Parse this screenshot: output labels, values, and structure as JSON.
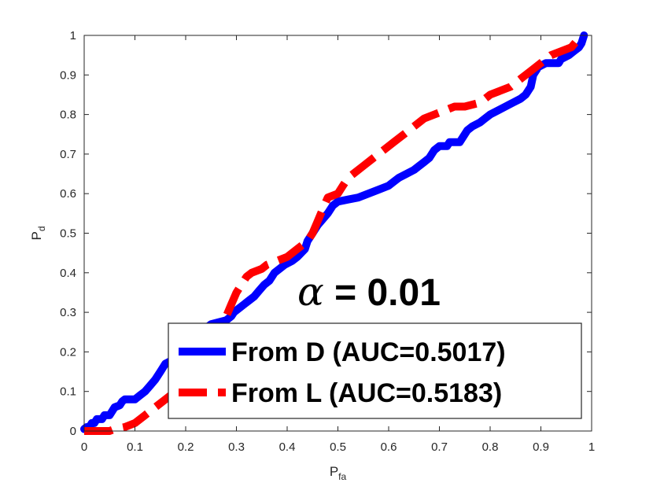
{
  "chart_data": {
    "type": "line",
    "title": "",
    "xlabel": "P",
    "xlabel_sub": "fa",
    "ylabel": "P",
    "ylabel_sub": "d",
    "xlim": [
      0,
      1
    ],
    "ylim": [
      0,
      1
    ],
    "xticks": [
      "0",
      "0.1",
      "0.2",
      "0.3",
      "0.4",
      "0.5",
      "0.6",
      "0.7",
      "0.8",
      "0.9",
      "1"
    ],
    "yticks": [
      "0",
      "0.1",
      "0.2",
      "0.3",
      "0.4",
      "0.5",
      "0.6",
      "0.7",
      "0.8",
      "0.9",
      "1"
    ],
    "grid": false,
    "legend_position": "bottom-right",
    "annotation": {
      "symbol": "α",
      "text": " = 0.01"
    },
    "series": [
      {
        "name": "From D (AUC=0.5017)",
        "color": "#0000ff",
        "style": "solid",
        "points": [
          [
            0,
            0.005
          ],
          [
            0.005,
            0.01
          ],
          [
            0.01,
            0.01
          ],
          [
            0.015,
            0.02
          ],
          [
            0.02,
            0.02
          ],
          [
            0.025,
            0.03
          ],
          [
            0.035,
            0.03
          ],
          [
            0.04,
            0.04
          ],
          [
            0.05,
            0.04
          ],
          [
            0.055,
            0.05
          ],
          [
            0.06,
            0.06
          ],
          [
            0.07,
            0.065
          ],
          [
            0.075,
            0.075
          ],
          [
            0.08,
            0.08
          ],
          [
            0.1,
            0.08
          ],
          [
            0.11,
            0.09
          ],
          [
            0.12,
            0.1
          ],
          [
            0.13,
            0.115
          ],
          [
            0.14,
            0.13
          ],
          [
            0.15,
            0.15
          ],
          [
            0.155,
            0.16
          ],
          [
            0.16,
            0.17
          ],
          [
            0.175,
            0.18
          ],
          [
            0.19,
            0.19
          ],
          [
            0.2,
            0.2
          ],
          [
            0.21,
            0.22
          ],
          [
            0.22,
            0.24
          ],
          [
            0.23,
            0.25
          ],
          [
            0.24,
            0.26
          ],
          [
            0.25,
            0.27
          ],
          [
            0.265,
            0.275
          ],
          [
            0.28,
            0.28
          ],
          [
            0.29,
            0.29
          ],
          [
            0.295,
            0.3
          ],
          [
            0.305,
            0.31
          ],
          [
            0.315,
            0.32
          ],
          [
            0.325,
            0.33
          ],
          [
            0.335,
            0.34
          ],
          [
            0.345,
            0.355
          ],
          [
            0.355,
            0.37
          ],
          [
            0.365,
            0.38
          ],
          [
            0.375,
            0.4
          ],
          [
            0.385,
            0.41
          ],
          [
            0.395,
            0.42
          ],
          [
            0.41,
            0.43
          ],
          [
            0.42,
            0.44
          ],
          [
            0.435,
            0.46
          ],
          [
            0.44,
            0.48
          ],
          [
            0.45,
            0.5
          ],
          [
            0.46,
            0.52
          ],
          [
            0.47,
            0.535
          ],
          [
            0.48,
            0.55
          ],
          [
            0.49,
            0.57
          ],
          [
            0.5,
            0.58
          ],
          [
            0.52,
            0.585
          ],
          [
            0.54,
            0.59
          ],
          [
            0.56,
            0.6
          ],
          [
            0.58,
            0.61
          ],
          [
            0.6,
            0.62
          ],
          [
            0.61,
            0.63
          ],
          [
            0.62,
            0.64
          ],
          [
            0.635,
            0.65
          ],
          [
            0.65,
            0.66
          ],
          [
            0.66,
            0.67
          ],
          [
            0.67,
            0.68
          ],
          [
            0.68,
            0.69
          ],
          [
            0.69,
            0.71
          ],
          [
            0.7,
            0.72
          ],
          [
            0.715,
            0.72
          ],
          [
            0.72,
            0.73
          ],
          [
            0.74,
            0.73
          ],
          [
            0.745,
            0.74
          ],
          [
            0.755,
            0.76
          ],
          [
            0.765,
            0.77
          ],
          [
            0.78,
            0.78
          ],
          [
            0.79,
            0.79
          ],
          [
            0.8,
            0.8
          ],
          [
            0.815,
            0.81
          ],
          [
            0.83,
            0.82
          ],
          [
            0.845,
            0.83
          ],
          [
            0.86,
            0.84
          ],
          [
            0.87,
            0.85
          ],
          [
            0.88,
            0.87
          ],
          [
            0.885,
            0.9
          ],
          [
            0.895,
            0.92
          ],
          [
            0.91,
            0.93
          ],
          [
            0.935,
            0.93
          ],
          [
            0.94,
            0.94
          ],
          [
            0.955,
            0.95
          ],
          [
            0.965,
            0.96
          ],
          [
            0.975,
            0.97
          ],
          [
            0.98,
            0.98
          ],
          [
            0.985,
            1
          ]
        ]
      },
      {
        "name": "From L (AUC=0.5183)",
        "color": "#ff0000",
        "style": "dashed",
        "points": [
          [
            0,
            0
          ],
          [
            0.05,
            0
          ],
          [
            0.06,
            0.005
          ],
          [
            0.08,
            0.01
          ],
          [
            0.1,
            0.02
          ],
          [
            0.12,
            0.04
          ],
          [
            0.14,
            0.06
          ],
          [
            0.16,
            0.08
          ],
          [
            0.18,
            0.1
          ],
          [
            0.2,
            0.13
          ],
          [
            0.22,
            0.16
          ],
          [
            0.24,
            0.2
          ],
          [
            0.26,
            0.24
          ],
          [
            0.27,
            0.26
          ],
          [
            0.28,
            0.29
          ],
          [
            0.29,
            0.32
          ],
          [
            0.3,
            0.35
          ],
          [
            0.31,
            0.37
          ],
          [
            0.32,
            0.39
          ],
          [
            0.33,
            0.4
          ],
          [
            0.35,
            0.41
          ],
          [
            0.36,
            0.42
          ],
          [
            0.38,
            0.43
          ],
          [
            0.4,
            0.44
          ],
          [
            0.42,
            0.46
          ],
          [
            0.44,
            0.48
          ],
          [
            0.45,
            0.5
          ],
          [
            0.46,
            0.53
          ],
          [
            0.47,
            0.56
          ],
          [
            0.48,
            0.59
          ],
          [
            0.5,
            0.6
          ],
          [
            0.51,
            0.62
          ],
          [
            0.52,
            0.64
          ],
          [
            0.53,
            0.65
          ],
          [
            0.55,
            0.67
          ],
          [
            0.57,
            0.69
          ],
          [
            0.59,
            0.71
          ],
          [
            0.61,
            0.73
          ],
          [
            0.63,
            0.75
          ],
          [
            0.65,
            0.77
          ],
          [
            0.67,
            0.79
          ],
          [
            0.69,
            0.8
          ],
          [
            0.71,
            0.81
          ],
          [
            0.73,
            0.82
          ],
          [
            0.75,
            0.82
          ],
          [
            0.78,
            0.83
          ],
          [
            0.8,
            0.85
          ],
          [
            0.82,
            0.86
          ],
          [
            0.84,
            0.87
          ],
          [
            0.86,
            0.89
          ],
          [
            0.88,
            0.91
          ],
          [
            0.9,
            0.93
          ],
          [
            0.92,
            0.95
          ],
          [
            0.94,
            0.96
          ],
          [
            0.96,
            0.97
          ],
          [
            0.98,
            1
          ]
        ]
      }
    ]
  }
}
